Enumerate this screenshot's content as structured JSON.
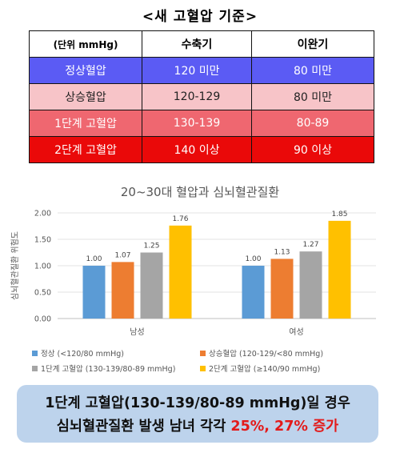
{
  "page_title": "<새 고혈압 기준>",
  "table": {
    "headers": [
      "(단위 mmHg)",
      "수축기",
      "이완기"
    ],
    "rows": [
      {
        "label": "정상혈압",
        "systolic": "120 미만",
        "diastolic": "80 미만",
        "color": "#5b5bf4"
      },
      {
        "label": "상승혈압",
        "systolic": "120-129",
        "diastolic": "80 미만",
        "color": "#f7c4c8"
      },
      {
        "label": "1단계 고혈압",
        "systolic": "130-139",
        "diastolic": "80-89",
        "color": "#ef6770"
      },
      {
        "label": "2단계 고혈압",
        "systolic": "140 이상",
        "diastolic": "90 이상",
        "color": "#ea0909"
      }
    ]
  },
  "chart_data": {
    "type": "bar",
    "title": "20~30대 혈압과 심뇌혈관질환",
    "ylabel": "심뇌혈관질환 위험도",
    "xlabel": "",
    "categories": [
      "남성",
      "여성"
    ],
    "ylim": [
      0,
      2
    ],
    "yticks": [
      "0.00",
      "0.50",
      "1.00",
      "1.50",
      "2.00"
    ],
    "grid": true,
    "legend_position": "bottom",
    "series": [
      {
        "name": "정상 (<120/80 mmHg)",
        "color": "#5b9bd5",
        "values": [
          1.0,
          1.0
        ]
      },
      {
        "name": "상승혈압 (120-129/<80 mmHg)",
        "color": "#ed7d31",
        "values": [
          1.07,
          1.13
        ]
      },
      {
        "name": "1단계 고혈압 (130-139/80-89 mmHg)",
        "color": "#a5a5a5",
        "values": [
          1.25,
          1.27
        ]
      },
      {
        "name": "2단계 고혈압 (≥140/90 mmHg)",
        "color": "#ffc000",
        "values": [
          1.76,
          1.85
        ]
      }
    ]
  },
  "callout": {
    "line1_bold": "1단계 고혈압",
    "line1_rest": "(130-139/80-89 mmHg)일 경우",
    "line2_start": "심뇌혈관질환 발생 ",
    "line2_mid": "남녀 각각 ",
    "line2_red": "25%, 27% 증가",
    "highlight_color": "#e31a1a",
    "background": "#bdd3ec"
  }
}
